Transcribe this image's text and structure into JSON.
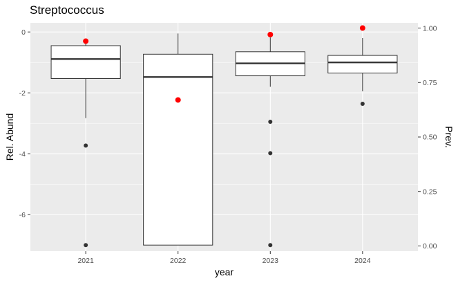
{
  "chart_data": {
    "type": "boxplot",
    "title": "Streptococcus",
    "xlabel": "year",
    "ylabel": "Rel. Abund",
    "y2label": "Prev.",
    "categories": [
      "2021",
      "2022",
      "2023",
      "2024"
    ],
    "ylim": [
      -7.2,
      0.3
    ],
    "yticks": [
      0,
      -2,
      -4,
      -6
    ],
    "ytick_labels": [
      "0",
      "-2",
      "-4",
      "-6"
    ],
    "y2lim": [
      -0.024,
      1.024
    ],
    "y2ticks": [
      1.0,
      0.75,
      0.5,
      0.25,
      0.0
    ],
    "y2tick_labels": [
      "1.00",
      "0.75",
      "0.50",
      "0.25",
      "0.00"
    ],
    "boxes": [
      {
        "category": "2021",
        "q1": -1.53,
        "median": -0.89,
        "q3": -0.45,
        "whisker_low": -2.83,
        "whisker_high": -0.22,
        "outliers": [
          -3.73,
          -7.0
        ]
      },
      {
        "category": "2022",
        "q1": -7.0,
        "median": -1.48,
        "q3": -0.73,
        "whisker_low": -7.0,
        "whisker_high": -0.05,
        "outliers": []
      },
      {
        "category": "2023",
        "q1": -1.44,
        "median": -1.03,
        "q3": -0.65,
        "whisker_low": -1.8,
        "whisker_high": -0.18,
        "outliers": [
          -2.95,
          -3.98,
          -7.0
        ]
      },
      {
        "category": "2024",
        "q1": -1.35,
        "median": -1.0,
        "q3": -0.77,
        "whisker_low": -1.95,
        "whisker_high": -0.2,
        "outliers": [
          -2.36
        ]
      }
    ],
    "prevalence": [
      0.94,
      0.67,
      0.97,
      1.0
    ],
    "grid": true,
    "colors": {
      "panel": "#ebebeb",
      "grid": "#ffffff",
      "box_fill": "#ffffff",
      "box_line": "#333333",
      "outlier": "#333333",
      "prevalence_point": "#ff0000"
    }
  }
}
